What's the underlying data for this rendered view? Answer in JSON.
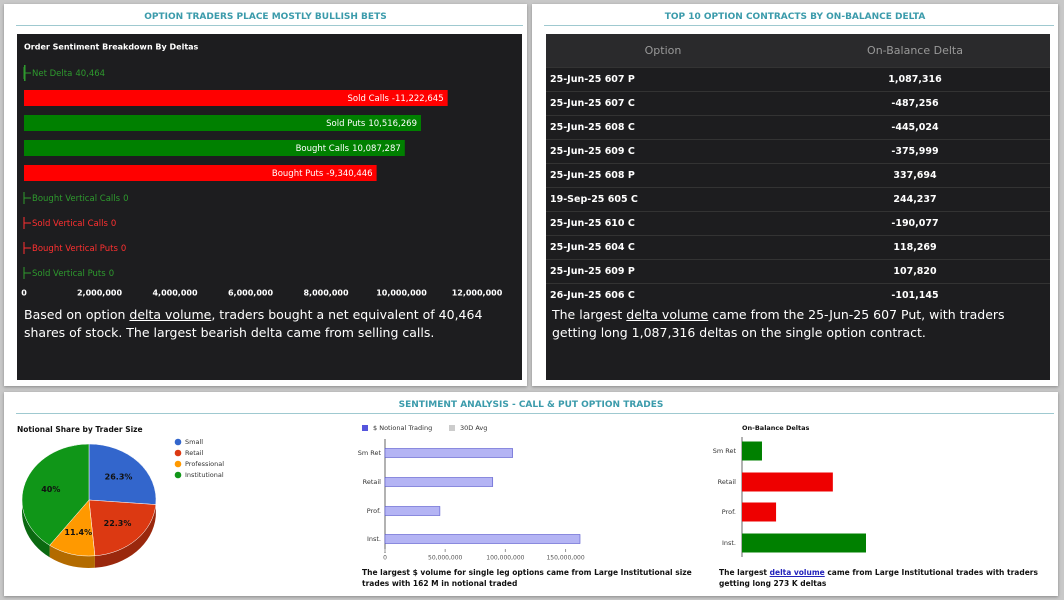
{
  "left_panel": {
    "title": "OPTION TRADERS PLACE MOSTLY BULLISH BETS",
    "caption": [
      "Based on option ",
      "delta volume",
      ", traders bought a net equivalent of 40,464 shares of stock. The largest bearish delta came from selling calls."
    ]
  },
  "right_panel": {
    "title": "TOP 10 OPTION CONTRACTS BY ON-BALANCE DELTA",
    "table": {
      "columns": [
        "Option",
        "On-Balance Delta"
      ],
      "rows": [
        [
          "25-Jun-25 607 P",
          "1,087,316"
        ],
        [
          "25-Jun-25 607 C",
          "-487,256"
        ],
        [
          "25-Jun-25 608 C",
          "-445,024"
        ],
        [
          "25-Jun-25 609 C",
          "-375,999"
        ],
        [
          "25-Jun-25 608 P",
          "337,694"
        ],
        [
          "19-Sep-25 605 C",
          "244,237"
        ],
        [
          "25-Jun-25 610 C",
          "-190,077"
        ],
        [
          "25-Jun-25 604 C",
          "118,269"
        ],
        [
          "25-Jun-25 609 P",
          "107,820"
        ],
        [
          "26-Jun-25 606 C",
          "-101,145"
        ]
      ]
    },
    "caption": [
      "The largest ",
      "delta volume",
      " came from the 25-Jun-25 607 Put, with traders getting long 1,087,316 deltas on the single option contract."
    ]
  },
  "bottom_panel": {
    "title": "SENTIMENT ANALYSIS - CALL & PUT OPTION TRADES",
    "notional_caption": "The largest $ volume for single leg options came from Large Institutional size trades with 162 M in notional traded",
    "delta_caption": [
      "The largest ",
      "delta volume",
      " came from Large Institutional trades with traders getting long 273 K deltas"
    ]
  },
  "chart_data": [
    {
      "type": "bar",
      "title": "Order Sentiment Breakdown By Deltas",
      "categories": [
        "Net Delta",
        "Sold Calls",
        "Sold Puts",
        "Bought Calls",
        "Bought Puts",
        "Bought Vertical Calls",
        "Sold Vertical Calls",
        "Bought Vertical Puts",
        "Sold Vertical Puts"
      ],
      "values": [
        40464,
        -11222645,
        10516269,
        10087287,
        -9340446,
        0,
        0,
        0,
        0
      ],
      "value_labels": [
        "40,464",
        "-11,222,645",
        "10,516,269",
        "10,087,287",
        "-9,340,446",
        "0",
        "0",
        "0",
        "0"
      ],
      "colors": [
        "#2e9a2e",
        "#ff0000",
        "#008000",
        "#008000",
        "#ff0000",
        "#2e9a2e",
        "#ff3030",
        "#ff3030",
        "#2e9a2e"
      ],
      "xlim": [
        0,
        12000000
      ],
      "xticks": [
        0,
        {
          "value": 2000000,
          "label": "2,000,000"
        },
        {
          "value": 4000000,
          "label": "4,000,000"
        },
        {
          "value": 6000000,
          "label": "6,000,000"
        },
        {
          "value": 8000000,
          "label": "8,000,000"
        },
        {
          "value": 10000000,
          "label": "10,000,000"
        },
        {
          "value": 12000000,
          "label": "12,000,000"
        }
      ]
    },
    {
      "type": "pie",
      "title": "Notional Share by Trader Size",
      "categories": [
        "Small",
        "Retail",
        "Professional",
        "Institutional"
      ],
      "values": [
        26.3,
        22.3,
        11.4,
        40
      ],
      "value_labels": [
        "26.3%",
        "22.3%",
        "11.4%",
        "40%"
      ],
      "colors": [
        "#3366cc",
        "#dc3912",
        "#ff9900",
        "#109618"
      ]
    },
    {
      "type": "bar",
      "categories": [
        "Sm Ret",
        "Retail",
        "Prof.",
        "Inst."
      ],
      "series": [
        {
          "name": "$ Notional Trading",
          "color": "#b4b4f4",
          "values": [
            106000000,
            89500000,
            45600000,
            162000000
          ]
        },
        {
          "name": "30D Avg",
          "color": "#cccccc",
          "values": [
            null,
            null,
            null,
            null
          ]
        }
      ],
      "xlim": [
        0,
        162000000
      ],
      "xticks": [
        0,
        {
          "value": 50000000,
          "label": "50,000,000"
        },
        {
          "value": 100000000,
          "label": "100,000,000"
        },
        {
          "value": 150000000,
          "label": "150,000,000"
        }
      ]
    },
    {
      "type": "bar",
      "title": "On-Balance Deltas",
      "categories": [
        "Sm Ret",
        "Retail",
        "Prof.",
        "Inst."
      ],
      "values": [
        44000,
        -200000,
        -75000,
        273000
      ],
      "colors": [
        "#008000",
        "#ee0000",
        "#ee0000",
        "#008000"
      ]
    }
  ]
}
